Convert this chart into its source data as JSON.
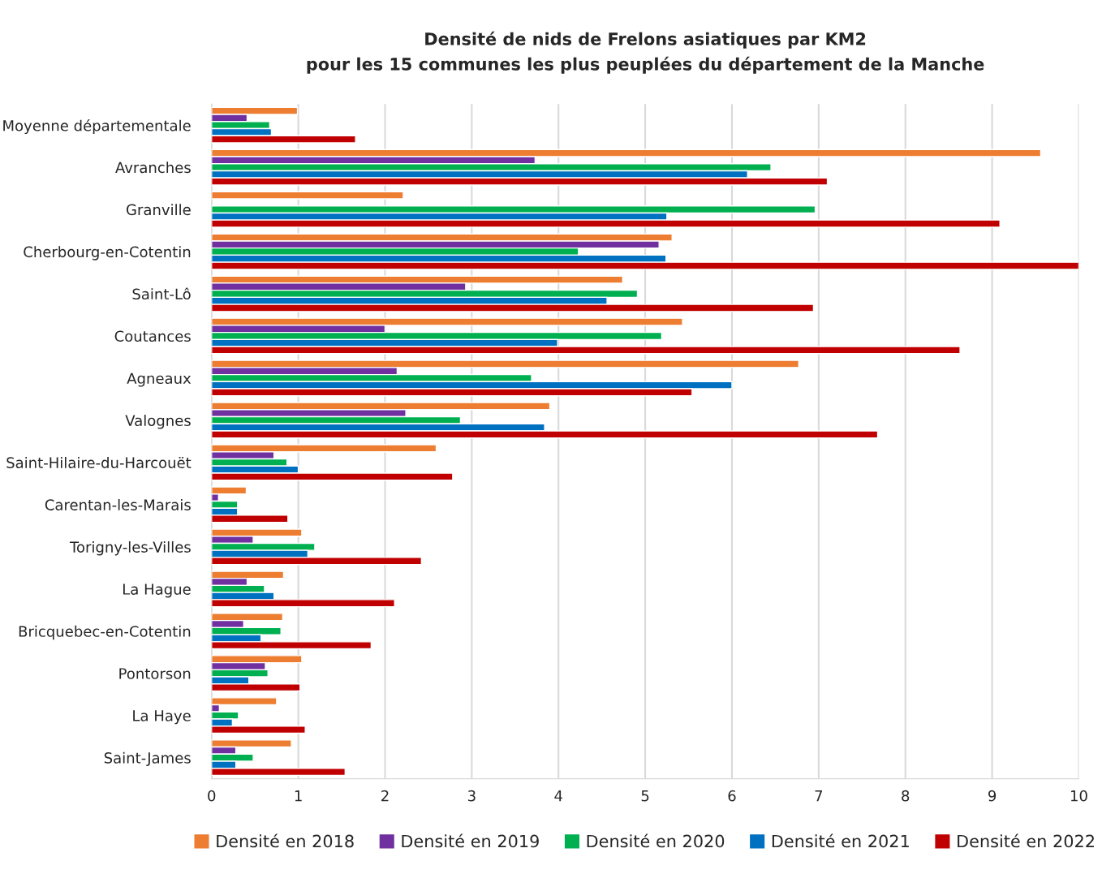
{
  "chart_data": {
    "type": "bar",
    "orientation": "horizontal",
    "title": "Densité de nids de Frelons asiatiques par KM2\npour les 15 communes les plus peuplées du département de la Manche",
    "categories": [
      "Moyenne départementale",
      "Avranches",
      "Granville",
      "Cherbourg-en-Cotentin",
      "Saint-Lô",
      "Coutances",
      "Agneaux",
      "Valognes",
      "Saint-Hilaire-du-Harcouët",
      "Carentan-les-Marais",
      "Torigny-les-Villes",
      "La Hague",
      "Bricquebec-en-Cotentin",
      "Pontorson",
      "La Haye",
      "Saint-James"
    ],
    "series": [
      {
        "name": "Densité en 2018",
        "color": "#ed7d31",
        "values": [
          0.99,
          9.56,
          2.21,
          5.31,
          4.74,
          5.43,
          6.77,
          3.9,
          2.59,
          0.4,
          1.04,
          0.83,
          0.82,
          1.04,
          0.75,
          0.92
        ]
      },
      {
        "name": "Densité en 2019",
        "color": "#7030a0",
        "values": [
          0.41,
          3.73,
          null,
          5.16,
          2.93,
          2.0,
          2.14,
          2.24,
          0.72,
          0.08,
          0.48,
          0.41,
          0.37,
          0.62,
          0.09,
          0.28
        ]
      },
      {
        "name": "Densité en 2020",
        "color": "#00b050",
        "values": [
          0.67,
          6.45,
          6.96,
          4.23,
          4.91,
          5.19,
          3.69,
          2.87,
          0.87,
          0.3,
          1.19,
          0.61,
          0.8,
          0.65,
          0.31,
          0.48
        ]
      },
      {
        "name": "Densité en 2021",
        "color": "#0070c0",
        "values": [
          0.69,
          6.18,
          5.25,
          5.24,
          4.56,
          3.99,
          6.0,
          3.84,
          1.0,
          0.3,
          1.11,
          0.72,
          0.57,
          0.43,
          0.24,
          0.28
        ]
      },
      {
        "name": "Densité en 2022",
        "color": "#c00000",
        "values": [
          1.66,
          7.1,
          9.09,
          10.0,
          6.94,
          8.63,
          5.54,
          7.68,
          2.78,
          0.88,
          2.42,
          2.11,
          1.84,
          1.02,
          1.08,
          1.54
        ]
      }
    ],
    "xlim": [
      0,
      10
    ],
    "xticks": [
      0,
      1,
      2,
      3,
      4,
      5,
      6,
      7,
      8,
      9,
      10
    ],
    "grid": "x",
    "legend": "bottom"
  }
}
